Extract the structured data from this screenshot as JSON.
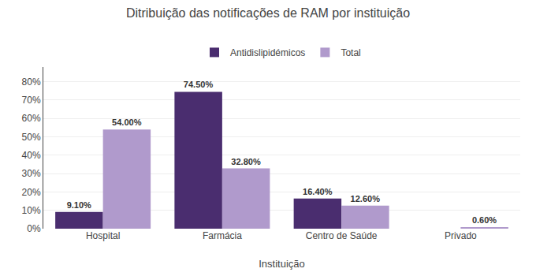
{
  "chart_data": {
    "type": "bar",
    "title": "Ditribuição das notificações de RAM por instituição",
    "xlabel": "Instituição",
    "categories": [
      "Hospital",
      "Farmácia",
      "Centro de Saúde",
      "Privado"
    ],
    "series": [
      {
        "name": "Antidislipidémicos",
        "color": "#4a2d6f",
        "values": [
          9.1,
          74.5,
          16.4,
          0.0
        ],
        "value_labels": [
          "9.10%",
          "74.50%",
          "16.40%",
          null
        ]
      },
      {
        "name": "Total",
        "color": "#b09acc",
        "values": [
          54.0,
          32.8,
          12.6,
          0.6
        ],
        "value_labels": [
          "54.00%",
          "32.80%",
          "12.60%",
          "0.60%"
        ]
      }
    ],
    "ylim": [
      0,
      88
    ],
    "yticks": [
      {
        "value": 0,
        "label": "0%"
      },
      {
        "value": 10,
        "label": "10%"
      },
      {
        "value": 20,
        "label": "20%"
      },
      {
        "value": 30,
        "label": "30%"
      },
      {
        "value": 40,
        "label": "40%"
      },
      {
        "value": 50,
        "label": "50%"
      },
      {
        "value": 60,
        "label": "60%"
      },
      {
        "value": 70,
        "label": "70%"
      },
      {
        "value": 80,
        "label": "80%"
      }
    ],
    "grid": true,
    "legend": "top",
    "data_labels": true
  }
}
